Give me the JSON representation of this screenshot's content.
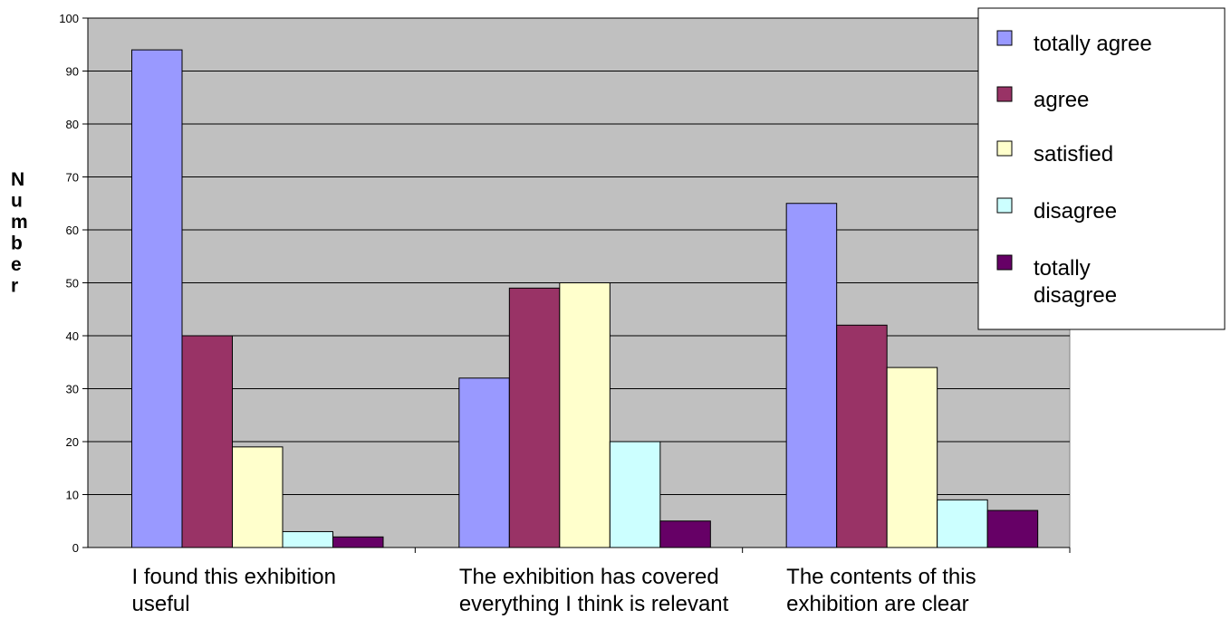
{
  "chart_data": {
    "type": "bar",
    "title": "",
    "xlabel": "",
    "ylabel": "Number",
    "ylim": [
      0,
      100
    ],
    "yticks": [
      0,
      10,
      20,
      30,
      40,
      50,
      60,
      70,
      80,
      90,
      100
    ],
    "grid": true,
    "legend_position": "top-right",
    "plot_background": "#c0c0c0",
    "categories": [
      [
        "I found this exhibition",
        "useful"
      ],
      [
        "The exhibition has covered",
        "everything I think is relevant"
      ],
      [
        "The contents of this",
        "exhibition are clear"
      ]
    ],
    "series": [
      {
        "name": "totally agree",
        "legend_lines": [
          "totally agree"
        ],
        "color": "#9999ff",
        "values": [
          94,
          32,
          65
        ]
      },
      {
        "name": "agree",
        "legend_lines": [
          "agree"
        ],
        "color": "#993366",
        "values": [
          40,
          49,
          42
        ]
      },
      {
        "name": "satisfied",
        "legend_lines": [
          "satisfied"
        ],
        "color": "#ffffcc",
        "values": [
          19,
          50,
          34
        ]
      },
      {
        "name": "disagree",
        "legend_lines": [
          "disagree"
        ],
        "color": "#ccffff",
        "values": [
          3,
          20,
          9
        ]
      },
      {
        "name": "totally disagree",
        "legend_lines": [
          "totally",
          "disagree"
        ],
        "color": "#660066",
        "values": [
          2,
          5,
          7
        ]
      }
    ]
  }
}
